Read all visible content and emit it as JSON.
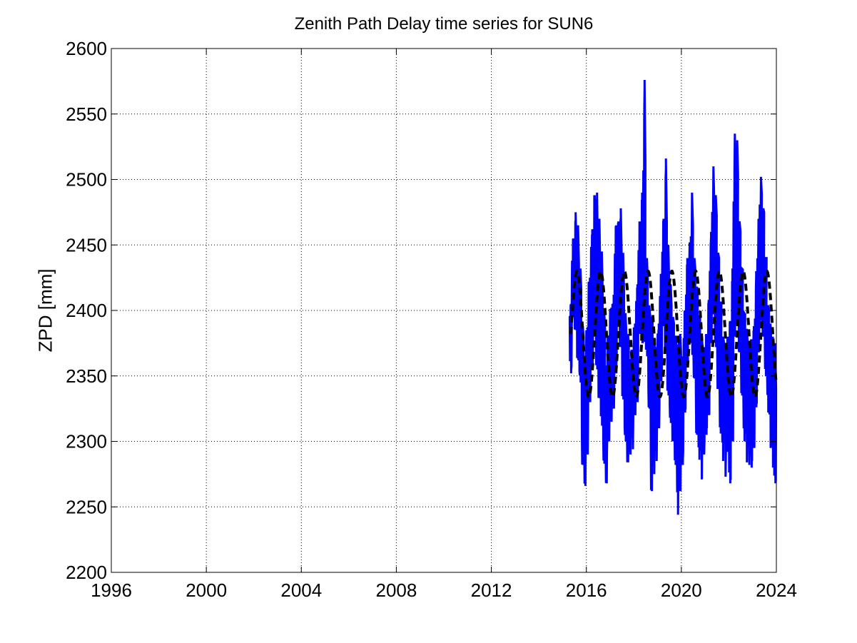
{
  "chart_data": {
    "type": "line",
    "title": "Zenith Path Delay time series for SUN6",
    "xlabel": "",
    "ylabel": "ZPD [mm]",
    "xlim": [
      1996,
      2024
    ],
    "ylim": [
      2200,
      2600
    ],
    "x_ticks": [
      1996,
      2000,
      2004,
      2008,
      2012,
      2016,
      2020,
      2024
    ],
    "y_ticks": [
      2200,
      2250,
      2300,
      2350,
      2400,
      2450,
      2500,
      2550,
      2600
    ],
    "grid": true,
    "series": [
      {
        "style": "solid",
        "color": "#0000ff",
        "x": [
          2015.35,
          2015.45,
          2015.55,
          2015.65,
          2015.75,
          2015.85,
          2015.95,
          2016.05,
          2016.15,
          2016.25,
          2016.35,
          2016.45,
          2016.55,
          2016.65,
          2016.75,
          2016.85,
          2016.95,
          2017.05,
          2017.15,
          2017.25,
          2017.35,
          2017.45,
          2017.55,
          2017.65,
          2017.75,
          2017.85,
          2017.95,
          2018.05,
          2018.15,
          2018.25,
          2018.35,
          2018.45,
          2018.55,
          2018.65,
          2018.75,
          2018.85,
          2018.95,
          2019.05,
          2019.15,
          2019.25,
          2019.35,
          2019.45,
          2019.55,
          2019.65,
          2019.75,
          2019.85,
          2019.95,
          2020.05,
          2020.15,
          2020.25,
          2020.35,
          2020.45,
          2020.55,
          2020.65,
          2020.75,
          2020.85,
          2020.95,
          2021.05,
          2021.15,
          2021.25,
          2021.35,
          2021.45,
          2021.55,
          2021.65,
          2021.75,
          2021.85,
          2021.95,
          2022.05,
          2022.15,
          2022.25,
          2022.35,
          2022.45,
          2022.55,
          2022.65,
          2022.75,
          2022.85,
          2022.95,
          2023.05,
          2023.15,
          2023.25,
          2023.35,
          2023.45,
          2023.55,
          2023.65,
          2023.75,
          2023.85,
          2023.95
        ],
        "lo": [
          2352,
          2395,
          2385,
          2362,
          2345,
          2282,
          2266,
          2290,
          2330,
          2355,
          2380,
          2355,
          2333,
          2312,
          2283,
          2268,
          2300,
          2315,
          2325,
          2352,
          2392,
          2372,
          2332,
          2300,
          2284,
          2290,
          2294,
          2320,
          2330,
          2382,
          2375,
          2376,
          2365,
          2325,
          2262,
          2275,
          2285,
          2310,
          2346,
          2388,
          2370,
          2335,
          2314,
          2300,
          2282,
          2244,
          2262,
          2282,
          2322,
          2358,
          2376,
          2366,
          2348,
          2305,
          2286,
          2271,
          2290,
          2305,
          2320,
          2375,
          2397,
          2372,
          2340,
          2306,
          2285,
          2273,
          2292,
          2268,
          2300,
          2380,
          2390,
          2368,
          2335,
          2300,
          2284,
          2282,
          2280,
          2295,
          2326,
          2368,
          2392,
          2380,
          2350,
          2322,
          2295,
          2280,
          2268
        ],
        "hi": [
          2405,
          2455,
          2475,
          2465,
          2432,
          2388,
          2360,
          2385,
          2425,
          2462,
          2488,
          2490,
          2470,
          2445,
          2400,
          2358,
          2380,
          2402,
          2412,
          2465,
          2468,
          2478,
          2444,
          2398,
          2382,
          2362,
          2370,
          2390,
          2420,
          2468,
          2490,
          2576,
          2440,
          2404,
          2395,
          2378,
          2372,
          2390,
          2428,
          2470,
          2516,
          2450,
          2420,
          2395,
          2380,
          2374,
          2382,
          2365,
          2400,
          2440,
          2452,
          2490,
          2440,
          2418,
          2395,
          2382,
          2372,
          2382,
          2408,
          2460,
          2510,
          2488,
          2444,
          2406,
          2380,
          2370,
          2380,
          2392,
          2432,
          2535,
          2530,
          2468,
          2432,
          2398,
          2386,
          2376,
          2378,
          2388,
          2430,
          2470,
          2502,
          2478,
          2440,
          2404,
          2390,
          2380,
          2375
        ]
      },
      {
        "style": "dashed",
        "color": "#000000",
        "model": "seasonal",
        "mean": 2382,
        "amplitude": 48,
        "peak_phase": 0.6,
        "x_range": [
          2015.35,
          2024
        ]
      }
    ]
  }
}
